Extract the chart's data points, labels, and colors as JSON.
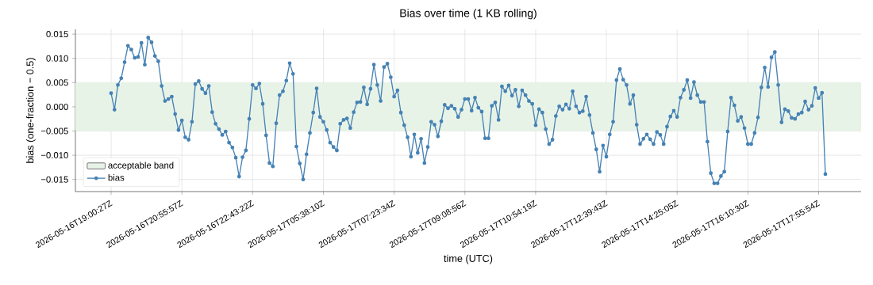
{
  "chart_data": {
    "type": "line",
    "title": "Bias over time (1 KB rolling)",
    "xlabel": "time (UTC)",
    "ylabel": "bias (one-fraction − 0.5)",
    "categories": [
      "2026-05-16T19:00:27Z",
      null,
      null,
      null,
      null,
      null,
      null,
      null,
      null,
      null,
      null,
      null,
      null,
      null,
      null,
      null,
      null,
      null,
      null,
      null,
      null,
      "2026-05-16T20:55:57Z",
      null,
      null,
      null,
      null,
      null,
      null,
      null,
      null,
      null,
      null,
      null,
      null,
      null,
      null,
      null,
      null,
      null,
      null,
      null,
      null,
      "2026-05-16T22:43:22Z",
      null,
      null,
      null,
      null,
      null,
      null,
      null,
      null,
      null,
      null,
      null,
      null,
      null,
      null,
      null,
      null,
      null,
      null,
      null,
      null,
      "2026-05-17T05:38:10Z",
      null,
      null,
      null,
      null,
      null,
      null,
      null,
      null,
      null,
      null,
      null,
      null,
      null,
      null,
      null,
      null,
      null,
      null,
      null,
      null,
      "2026-05-17T07:23:34Z",
      null,
      null,
      null,
      null,
      null,
      null,
      null,
      null,
      null,
      null,
      null,
      null,
      null,
      null,
      null,
      null,
      null,
      null,
      null,
      null,
      "2026-05-17T09:08:56Z",
      null,
      null,
      null,
      null,
      null,
      null,
      null,
      null,
      null,
      null,
      null,
      null,
      null,
      null,
      null,
      null,
      null,
      null,
      null,
      null,
      "2026-05-17T10:54:19Z",
      null,
      null,
      null,
      null,
      null,
      null,
      null,
      null,
      null,
      null,
      null,
      null,
      null,
      null,
      null,
      null,
      null,
      null,
      null,
      null,
      "2026-05-17T12:39:43Z",
      null,
      null,
      null,
      null,
      null,
      null,
      null,
      null,
      null,
      null,
      null,
      null,
      null,
      null,
      null,
      null,
      null,
      null,
      null,
      null,
      "2026-05-17T14:25:05Z",
      null,
      null,
      null,
      null,
      null,
      null,
      null,
      null,
      null,
      null,
      null,
      null,
      null,
      null,
      null,
      null,
      null,
      null,
      null,
      null,
      "2026-05-17T16:10:30Z",
      null,
      null,
      null,
      null,
      null,
      null,
      null,
      null,
      null,
      null,
      null,
      null,
      null,
      null,
      null,
      null,
      null,
      null,
      null,
      null,
      "2026-05-17T17:55:54Z",
      null,
      null
    ],
    "series": [
      {
        "name": "bias",
        "color": "#4682b4",
        "values": [
          0.0028,
          -0.0006,
          0.0045,
          0.0059,
          0.0092,
          0.0126,
          0.0118,
          0.0101,
          0.0103,
          0.0132,
          0.0087,
          0.0143,
          0.0133,
          0.0105,
          0.0094,
          0.0043,
          0.0012,
          0.0016,
          0.0021,
          -0.0015,
          -0.0048,
          -0.0028,
          -0.0063,
          -0.0068,
          -0.0031,
          0.0047,
          0.0053,
          0.0037,
          0.0028,
          0.0043,
          -0.0011,
          -0.0035,
          -0.0046,
          -0.0058,
          -0.0051,
          -0.0074,
          -0.0084,
          -0.0105,
          -0.0144,
          -0.0104,
          -0.009,
          -0.0025,
          0.0045,
          0.0038,
          0.0048,
          0.0006,
          -0.0059,
          -0.0116,
          -0.0123,
          -0.0034,
          0.0024,
          0.0032,
          0.0054,
          0.009,
          0.0068,
          -0.0082,
          -0.0117,
          -0.015,
          -0.0098,
          -0.0054,
          -0.0012,
          0.0038,
          -0.0021,
          -0.0031,
          -0.0048,
          -0.0074,
          -0.0083,
          -0.009,
          -0.0035,
          -0.0027,
          -0.0024,
          -0.0044,
          -0.0011,
          0.0009,
          0.001,
          0.004,
          0.0005,
          0.0037,
          0.0087,
          0.0045,
          0.0012,
          0.0082,
          0.0089,
          0.0061,
          0.0021,
          0.0034,
          -0.0012,
          -0.0038,
          -0.0063,
          -0.0103,
          -0.0057,
          -0.0095,
          -0.0066,
          -0.0116,
          -0.0083,
          -0.0031,
          -0.0037,
          -0.0061,
          -0.003,
          0.0004,
          -0.0003,
          0.0002,
          -0.0004,
          -0.0021,
          -0.0006,
          0.0016,
          0.0016,
          -0.0008,
          0.0019,
          -0.0002,
          -0.001,
          -0.0065,
          -0.0065,
          0.0002,
          0.0009,
          -0.0027,
          0.0042,
          0.0032,
          0.0044,
          0.0023,
          0.0035,
          0.0001,
          0.0034,
          0.0024,
          0.0012,
          0.0006,
          -0.0038,
          -0.0005,
          -0.0012,
          -0.0046,
          -0.0077,
          -0.0068,
          -0.0019,
          0.0001,
          -0.0006,
          0.0005,
          -0.0004,
          0.0032,
          0.0001,
          -0.0012,
          -0.0009,
          0.0021,
          -0.0017,
          -0.0054,
          -0.0088,
          -0.0134,
          -0.008,
          -0.0103,
          -0.0057,
          -0.0031,
          0.0055,
          0.0078,
          0.0056,
          0.0045,
          0.0006,
          0.0024,
          -0.0037,
          -0.0077,
          -0.0066,
          -0.0057,
          -0.0067,
          -0.0077,
          -0.0052,
          -0.0058,
          -0.0077,
          -0.0041,
          -0.002,
          -0.0008,
          -0.0021,
          0.0019,
          0.0035,
          0.0055,
          0.0018,
          0.0051,
          0.0024,
          0.001,
          0.001,
          -0.0072,
          -0.0137,
          -0.0158,
          -0.0158,
          -0.0143,
          -0.0134,
          -0.0051,
          0.0019,
          0.0003,
          -0.0029,
          -0.0021,
          -0.0044,
          -0.0077,
          -0.0077,
          -0.0054,
          -0.0022,
          0.004,
          0.0081,
          0.0041,
          0.0102,
          0.0113,
          0.0045,
          -0.0032,
          -0.0005,
          -0.0009,
          -0.0023,
          -0.0025,
          -0.0015,
          -0.0012,
          0.0011,
          -0.0006,
          0.0002,
          0.0039,
          0.0018,
          0.0029,
          -0.0139
        ]
      }
    ],
    "ylim": [
      -0.0175,
      0.016
    ],
    "yticks": [
      {
        "value": -0.015,
        "label": "−0.015"
      },
      {
        "value": -0.01,
        "label": "−0.010"
      },
      {
        "value": -0.005,
        "label": "−0.005"
      },
      {
        "value": 0,
        "label": "0.000"
      },
      {
        "value": 0.005,
        "label": "0.005"
      },
      {
        "value": 0.01,
        "label": "0.010"
      },
      {
        "value": 0.015,
        "label": "0.015"
      }
    ],
    "bands": [
      {
        "axis": "y",
        "from": -0.005,
        "to": 0.005,
        "label": "acceptable band",
        "color": "#e8f3e8"
      }
    ],
    "grid": true,
    "legend": "bottom left",
    "marker": "circle",
    "line_style": "solid"
  }
}
